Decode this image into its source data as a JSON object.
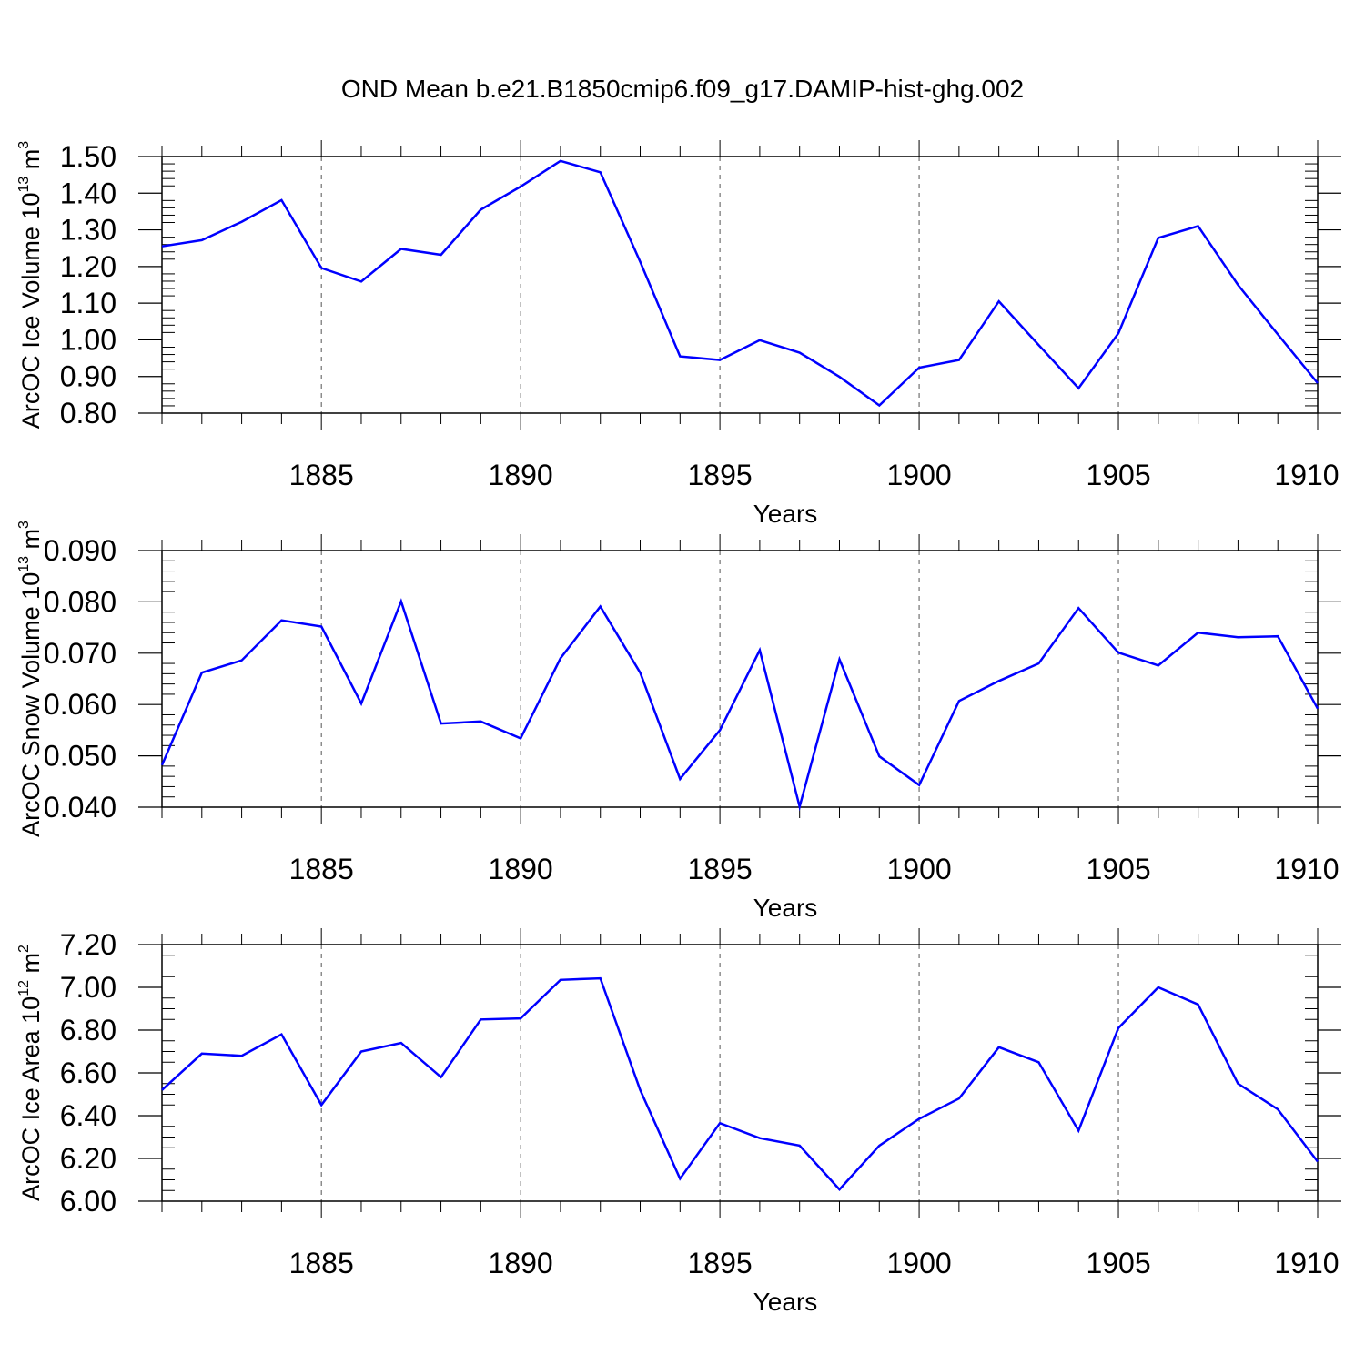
{
  "figure_title": "OND Mean b.e21.B1850cmip6.f09_g17.DAMIP-hist-ghg.002",
  "chart_data": [
    {
      "type": "line",
      "title": "",
      "xlabel": "Years",
      "ylabel": "ArcOC Ice Volume 10",
      "ylabel_exp1": "13",
      "ylabel_unit": " m",
      "ylabel_exp2": "3",
      "x": [
        1881,
        1882,
        1883,
        1884,
        1885,
        1886,
        1887,
        1888,
        1889,
        1890,
        1891,
        1892,
        1893,
        1894,
        1895,
        1896,
        1897,
        1898,
        1899,
        1900,
        1901,
        1902,
        1903,
        1904,
        1905,
        1906,
        1907,
        1908,
        1909,
        1910
      ],
      "values": [
        1.255,
        1.272,
        1.322,
        1.381,
        1.196,
        1.159,
        1.248,
        1.232,
        1.355,
        1.418,
        1.488,
        1.457,
        1.213,
        0.955,
        0.945,
        0.999,
        0.965,
        0.899,
        0.821,
        0.924,
        0.945,
        1.105,
        0.986,
        0.868,
        1.018,
        1.278,
        1.31,
        1.15,
        1.015,
        0.882
      ],
      "xlim": [
        1881,
        1910
      ],
      "ylim": [
        0.8,
        1.5
      ],
      "yticks": [
        "0.80",
        "0.90",
        "1.00",
        "1.10",
        "1.20",
        "1.30",
        "1.40",
        "1.50"
      ],
      "xticks": [
        "1885",
        "1890",
        "1895",
        "1900",
        "1905",
        "1910"
      ],
      "line_color": "#0000ff",
      "grid": "dashed vertical at major ticks"
    },
    {
      "type": "line",
      "title": "",
      "xlabel": "Years",
      "ylabel": "ArcOC Snow Volume 10",
      "ylabel_exp1": "13",
      "ylabel_unit": " m",
      "ylabel_exp2": "3",
      "x": [
        1881,
        1882,
        1883,
        1884,
        1885,
        1886,
        1887,
        1888,
        1889,
        1890,
        1891,
        1892,
        1893,
        1894,
        1895,
        1896,
        1897,
        1898,
        1899,
        1900,
        1901,
        1902,
        1903,
        1904,
        1905,
        1906,
        1907,
        1908,
        1909,
        1910
      ],
      "values": [
        0.0482,
        0.0662,
        0.0686,
        0.0764,
        0.0752,
        0.0602,
        0.0801,
        0.0563,
        0.0567,
        0.0534,
        0.069,
        0.0791,
        0.0662,
        0.0455,
        0.055,
        0.0706,
        0.0401,
        0.0688,
        0.0499,
        0.0443,
        0.0607,
        0.0646,
        0.068,
        0.0788,
        0.0701,
        0.0676,
        0.074,
        0.0731,
        0.0733,
        0.0592
      ],
      "xlim": [
        1881,
        1910
      ],
      "ylim": [
        0.04,
        0.09
      ],
      "yticks": [
        "0.040",
        "0.050",
        "0.060",
        "0.070",
        "0.080",
        "0.090"
      ],
      "xticks": [
        "1885",
        "1890",
        "1895",
        "1900",
        "1905",
        "1910"
      ],
      "line_color": "#0000ff",
      "grid": "dashed vertical at major ticks"
    },
    {
      "type": "line",
      "title": "",
      "xlabel": "Years",
      "ylabel": "ArcOC Ice Area 10",
      "ylabel_exp1": "12",
      "ylabel_unit": " m",
      "ylabel_exp2": "2",
      "x": [
        1881,
        1882,
        1883,
        1884,
        1885,
        1886,
        1887,
        1888,
        1889,
        1890,
        1891,
        1892,
        1893,
        1894,
        1895,
        1896,
        1897,
        1898,
        1899,
        1900,
        1901,
        1902,
        1903,
        1904,
        1905,
        1906,
        1907,
        1908,
        1909,
        1910
      ],
      "values": [
        6.52,
        6.69,
        6.68,
        6.78,
        6.45,
        6.7,
        6.74,
        6.58,
        6.85,
        6.855,
        7.035,
        7.042,
        6.52,
        6.105,
        6.365,
        6.295,
        6.26,
        6.055,
        6.26,
        6.385,
        6.48,
        6.72,
        6.65,
        6.33,
        6.81,
        7.0,
        6.92,
        6.55,
        6.43,
        6.185
      ],
      "xlim": [
        1881,
        1910
      ],
      "ylim": [
        6.0,
        7.2
      ],
      "yticks": [
        "6.00",
        "6.20",
        "6.40",
        "6.60",
        "6.80",
        "7.00",
        "7.20"
      ],
      "xticks": [
        "1885",
        "1890",
        "1895",
        "1900",
        "1905",
        "1910"
      ],
      "line_color": "#0000ff",
      "grid": "dashed vertical at major ticks"
    }
  ]
}
